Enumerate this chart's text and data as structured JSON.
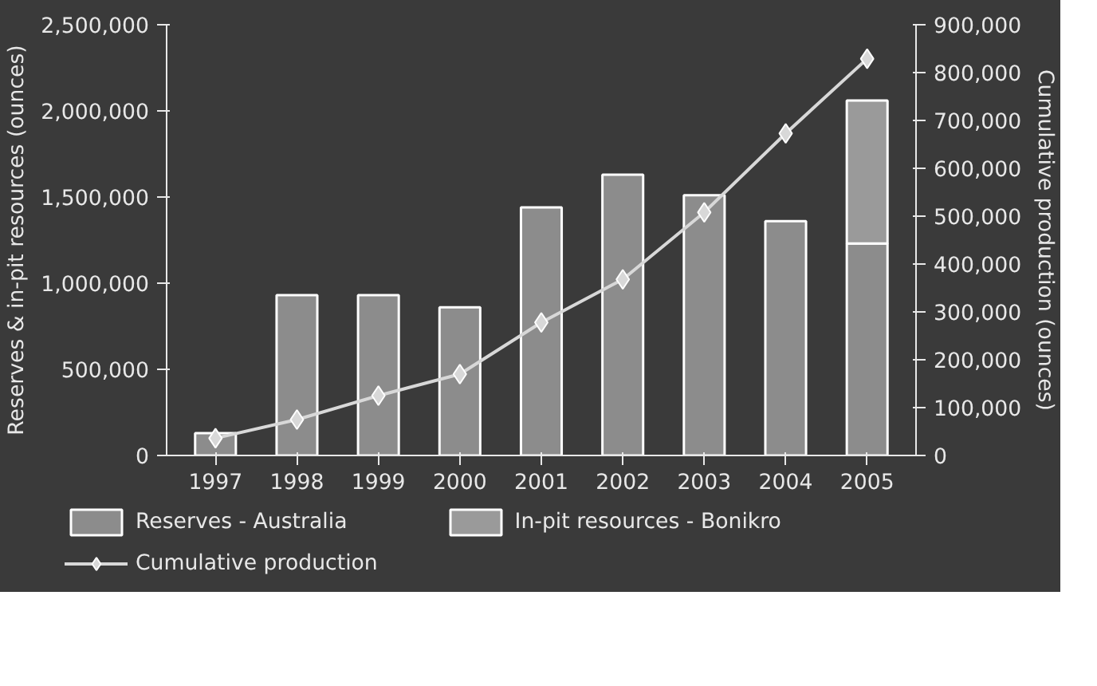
{
  "chart_data": {
    "type": "bar",
    "stacked": true,
    "categories": [
      "1997",
      "1998",
      "1999",
      "2000",
      "2001",
      "2002",
      "2003",
      "2004",
      "2005"
    ],
    "ylabel": "Reserves & in-pit resources (ounces)",
    "y2label": "Cumulative production (ounces)",
    "ylim": [
      0,
      2500000
    ],
    "yticks": [
      0,
      {
        "value": 500000,
        "label": "500,000"
      },
      {
        "value": 1000000,
        "label": "1,000,000"
      },
      {
        "value": 1500000,
        "label": "1,500,000"
      },
      {
        "value": 2000000,
        "label": "2,000,000"
      },
      {
        "value": 2500000,
        "label": "2,500,000"
      }
    ],
    "y2lim": [
      0,
      900000
    ],
    "y2ticks": [
      0,
      {
        "value": 100000,
        "label": "100,000"
      },
      {
        "value": 200000,
        "label": "200,000"
      },
      {
        "value": 300000,
        "label": "300,000"
      },
      {
        "value": 400000,
        "label": "400,000"
      },
      {
        "value": 500000,
        "label": "500,000"
      },
      {
        "value": 600000,
        "label": "600,000"
      },
      {
        "value": 700000,
        "label": "700,000"
      },
      {
        "value": 800000,
        "label": "800,000"
      },
      {
        "value": 900000,
        "label": "900,000"
      }
    ],
    "series": [
      {
        "name": "Reserves - Australia",
        "color": "#8c8c8c",
        "values": [
          130000,
          930000,
          930000,
          860000,
          1440000,
          1630000,
          1510000,
          1360000,
          1230000
        ]
      },
      {
        "name": "In-pit resources - Bonikro",
        "color": "#9a9a9a",
        "values": [
          null,
          null,
          null,
          null,
          null,
          null,
          null,
          null,
          830000
        ]
      },
      {
        "name": "Cumulative production",
        "type": "line",
        "axis": "y2",
        "color": "#d8d8d8",
        "marker": "diamond",
        "values": [
          36000,
          75000,
          125000,
          170000,
          278000,
          368000,
          508000,
          673000,
          829000
        ]
      }
    ],
    "grid": false,
    "legend": "bottom"
  }
}
